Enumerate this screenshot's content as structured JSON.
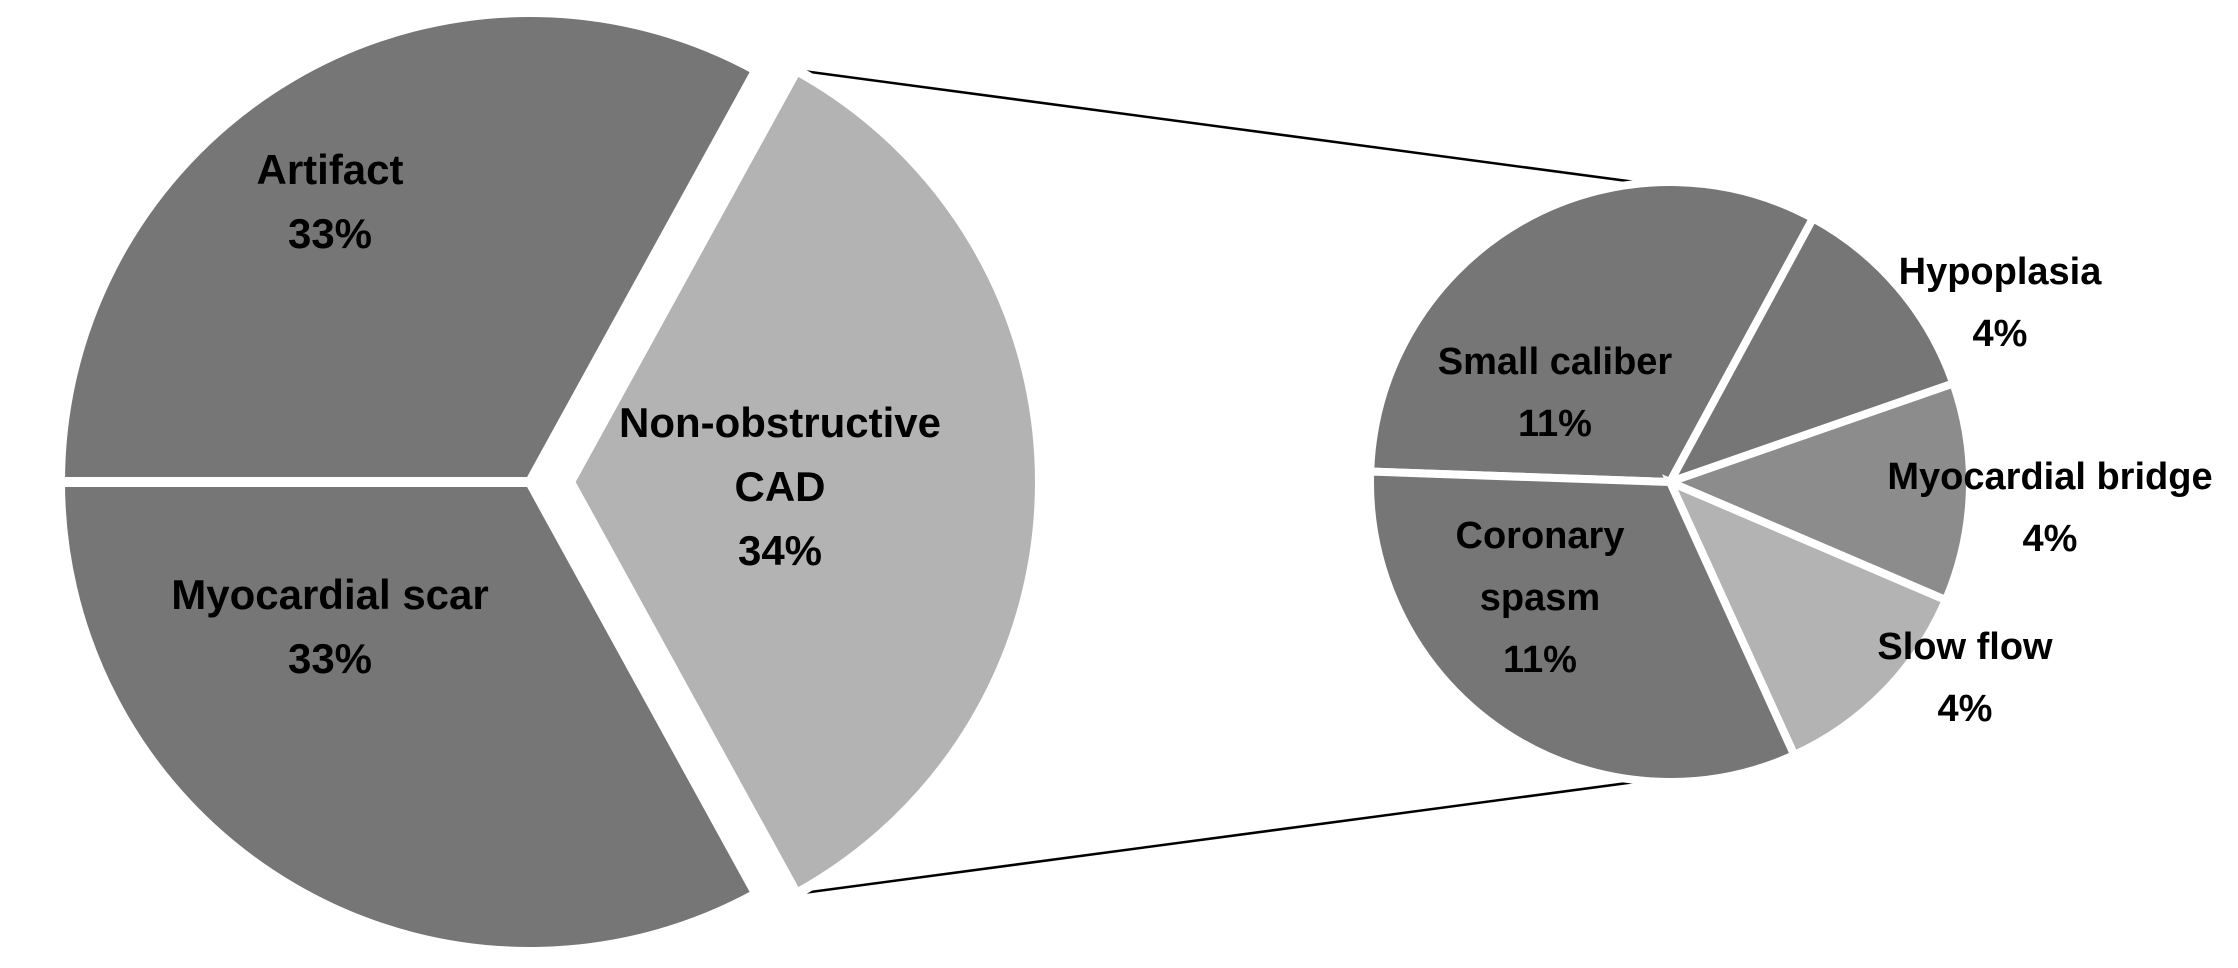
{
  "chart_data": [
    {
      "type": "pie",
      "slices": [
        {
          "name": "Artifact",
          "label_lines": [
            "Artifact",
            "33%"
          ],
          "value": 33,
          "color": "#767676"
        },
        {
          "name": "Non-obstructive CAD",
          "label_lines": [
            "Non-obstructive",
            "CAD",
            "34%"
          ],
          "value": 34,
          "color": "#b3b3b3"
        },
        {
          "name": "Myocardial scar",
          "label_lines": [
            "Myocardial scar",
            "33%"
          ],
          "value": 33,
          "color": "#767676"
        }
      ]
    },
    {
      "type": "pie",
      "slices": [
        {
          "name": "Small caliber",
          "label_lines": [
            "Small caliber",
            "11%"
          ],
          "value": 11,
          "color": "#767676"
        },
        {
          "name": "Hypoplasia",
          "label_lines": [
            "Hypoplasia",
            "4%"
          ],
          "value": 4,
          "color": "#767676"
        },
        {
          "name": "Myocardial bridge",
          "label_lines": [
            "Myocardial bridge",
            "4%"
          ],
          "value": 4,
          "color": "#8c8c8c"
        },
        {
          "name": "Slow flow",
          "label_lines": [
            "Slow flow",
            "4%"
          ],
          "value": 4,
          "color": "#b3b3b3"
        },
        {
          "name": "Coronary spasm",
          "label_lines": [
            "Coronary",
            "spasm",
            "11%"
          ],
          "value": 11,
          "color": "#767676"
        }
      ]
    }
  ]
}
